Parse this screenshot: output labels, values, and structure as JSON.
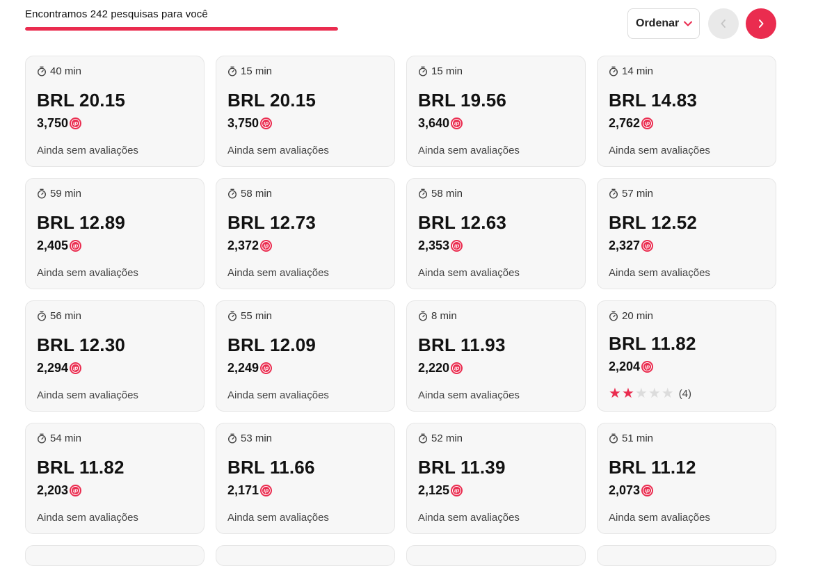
{
  "header": {
    "results_text": "Encontramos 242 pesquisas para você",
    "progress_fraction": 1.0,
    "sort_label": "Ordenar"
  },
  "colors": {
    "accent": "#ea2c4f",
    "card_bg": "#f7f7f7",
    "star_empty": "#dcdcdc"
  },
  "icons": {
    "timer": "stopwatch-icon",
    "points": "points-coin-icon",
    "sort": "chevron-down-icon",
    "prev": "chevron-left-icon",
    "next": "chevron-right-icon",
    "star": "star-icon"
  },
  "cards": [
    {
      "time": "40 min",
      "price": "BRL 20.15",
      "points": "3,750",
      "reviews": "Ainda sem avaliações"
    },
    {
      "time": "15 min",
      "price": "BRL 20.15",
      "points": "3,750",
      "reviews": "Ainda sem avaliações"
    },
    {
      "time": "15 min",
      "price": "BRL 19.56",
      "points": "3,640",
      "reviews": "Ainda sem avaliações"
    },
    {
      "time": "14 min",
      "price": "BRL 14.83",
      "points": "2,762",
      "reviews": "Ainda sem avaliações"
    },
    {
      "time": "59 min",
      "price": "BRL 12.89",
      "points": "2,405",
      "reviews": "Ainda sem avaliações"
    },
    {
      "time": "58 min",
      "price": "BRL 12.73",
      "points": "2,372",
      "reviews": "Ainda sem avaliações"
    },
    {
      "time": "58 min",
      "price": "BRL 12.63",
      "points": "2,353",
      "reviews": "Ainda sem avaliações"
    },
    {
      "time": "57 min",
      "price": "BRL 12.52",
      "points": "2,327",
      "reviews": "Ainda sem avaliações"
    },
    {
      "time": "56 min",
      "price": "BRL 12.30",
      "points": "2,294",
      "reviews": "Ainda sem avaliações"
    },
    {
      "time": "55 min",
      "price": "BRL 12.09",
      "points": "2,249",
      "reviews": "Ainda sem avaliações"
    },
    {
      "time": "8 min",
      "price": "BRL 11.93",
      "points": "2,220",
      "reviews": "Ainda sem avaliações"
    },
    {
      "time": "20 min",
      "price": "BRL 11.82",
      "points": "2,204",
      "rating": 2,
      "rating_max": 5,
      "review_count": "(4)"
    },
    {
      "time": "54 min",
      "price": "BRL 11.82",
      "points": "2,203",
      "reviews": "Ainda sem avaliações"
    },
    {
      "time": "53 min",
      "price": "BRL 11.66",
      "points": "2,171",
      "reviews": "Ainda sem avaliações"
    },
    {
      "time": "52 min",
      "price": "BRL 11.39",
      "points": "2,125",
      "reviews": "Ainda sem avaliações"
    },
    {
      "time": "51 min",
      "price": "BRL 11.12",
      "points": "2,073",
      "reviews": "Ainda sem avaliações"
    }
  ]
}
